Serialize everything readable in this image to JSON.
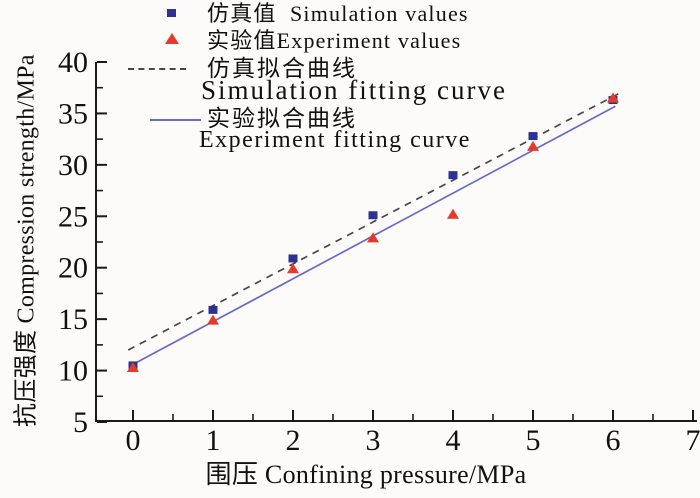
{
  "figure": {
    "background": "#fcfbf9",
    "axis_color": "#1a1a1a",
    "text_color": "#111111"
  },
  "legend": {
    "position": "top-left-inside",
    "items": [
      {
        "label": "仿真值  Simulation values",
        "marker": "square",
        "color": "#2e3192"
      },
      {
        "label": "实验值Experiment values",
        "marker": "triangle",
        "color": "#e23b2a"
      },
      {
        "label_cn": "仿真拟合曲线",
        "label_en": "Simulation fitting curve",
        "line": "dashed",
        "color": "#474747"
      },
      {
        "label_cn": "实验拟合曲线",
        "label_en": "Experiment fitting curve",
        "line": "solid",
        "color": "#6a6ac8"
      }
    ]
  },
  "chart_data": {
    "type": "scatter",
    "title": "",
    "xlabel": "围压 Confining pressure/MPa",
    "ylabel": "抗压强度 Compression strength/MPa",
    "xlim": [
      -0.46,
      7.06
    ],
    "ylim": [
      5,
      40
    ],
    "x_ticks": [
      0,
      1,
      2,
      3,
      4,
      5,
      6,
      7
    ],
    "y_ticks": [
      5,
      10,
      15,
      20,
      25,
      30,
      35,
      40
    ],
    "minor_ticks": true,
    "grid": false,
    "series": [
      {
        "name": "仿真值 Simulation values",
        "kind": "scatter",
        "marker": "square",
        "color": "#2e3192",
        "x": [
          0,
          1,
          2,
          3,
          4,
          5,
          6
        ],
        "y": [
          10.5,
          15.9,
          20.9,
          25.1,
          29.0,
          32.8,
          36.3
        ]
      },
      {
        "name": "实验值 Experiment values",
        "kind": "scatter",
        "marker": "triangle",
        "color": "#e23b2a",
        "x": [
          0,
          1,
          2,
          3,
          4,
          5,
          6
        ],
        "y": [
          10.3,
          14.9,
          19.9,
          22.9,
          25.2,
          31.8,
          36.5
        ]
      },
      {
        "name": "仿真拟合曲线 Simulation fitting curve",
        "kind": "line",
        "style": "dashed",
        "color": "#474747",
        "x": [
          -0.06,
          6.09
        ],
        "y": [
          12.0,
          37.0
        ]
      },
      {
        "name": "实验拟合曲线 Experiment fitting curve",
        "kind": "line",
        "style": "solid",
        "color": "#6a6ac8",
        "x": [
          0.0,
          6.03
        ],
        "y": [
          10.6,
          35.7
        ]
      }
    ]
  }
}
